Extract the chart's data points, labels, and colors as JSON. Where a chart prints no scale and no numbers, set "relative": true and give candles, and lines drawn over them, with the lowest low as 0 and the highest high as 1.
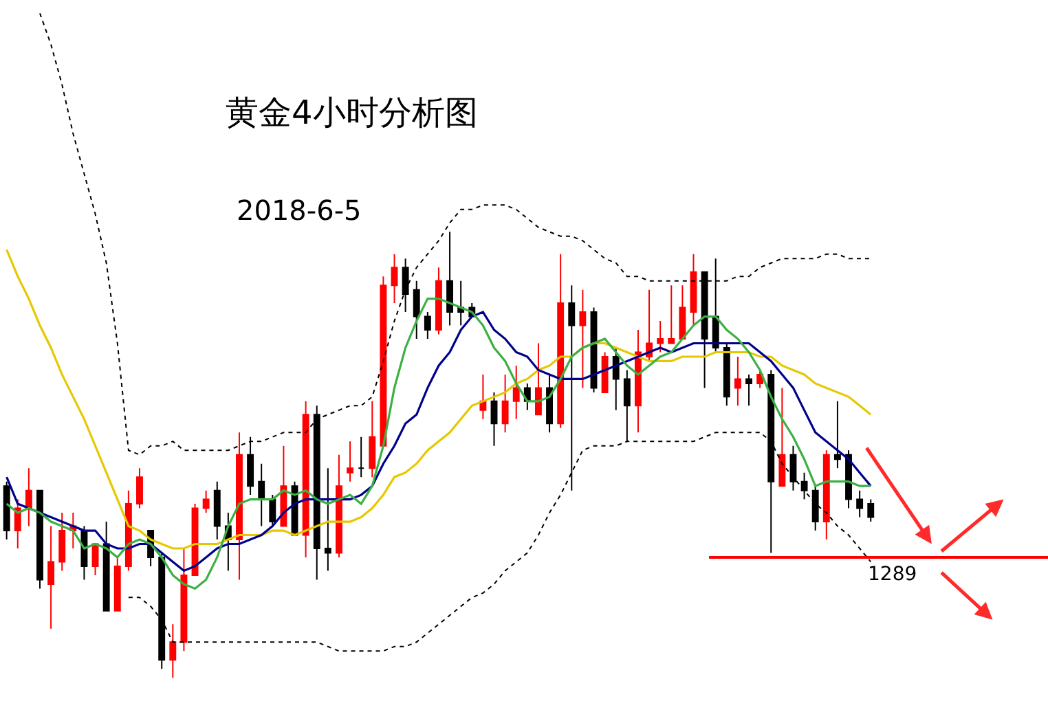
{
  "chart_data": {
    "type": "candlestick",
    "title": "黄金4小时分析图",
    "subtitle": "2018-6-5",
    "relative": true,
    "categories": [
      null,
      null,
      null,
      null,
      null,
      null,
      null,
      null,
      null,
      null,
      null,
      null,
      null,
      null,
      null,
      null,
      null,
      null,
      null,
      null,
      null,
      null,
      null,
      null,
      null,
      null,
      null,
      null,
      null,
      null,
      null,
      null,
      null,
      null,
      null,
      null,
      null,
      null,
      null,
      null,
      null,
      null,
      null,
      null,
      null,
      null,
      null,
      null,
      null,
      null,
      null,
      null,
      null,
      null,
      null,
      null,
      null,
      null,
      null,
      null,
      null,
      null,
      null,
      null,
      null,
      null,
      null,
      null,
      null,
      null,
      null,
      null,
      null,
      null,
      null,
      null,
      null,
      null,
      null
    ],
    "series": [
      {
        "type": "line",
        "color": "#e6c800",
        "line_style": "solid",
        "values": [
          0.96,
          0.9,
          0.85,
          0.79,
          0.74,
          0.68,
          0.63,
          0.58,
          0.52,
          0.46,
          0.4,
          0.34,
          0.33,
          0.31,
          0.3,
          0.29,
          0.29,
          0.3,
          0.3,
          0.3,
          0.31,
          0.32,
          0.32,
          0.32,
          0.33,
          0.33,
          0.32,
          0.33,
          0.34,
          0.35,
          0.35,
          0.35,
          0.36,
          0.38,
          0.41,
          0.45,
          0.46,
          0.48,
          0.51,
          0.53,
          0.55,
          0.58,
          0.61,
          0.62,
          0.63,
          0.64,
          0.66,
          0.67,
          0.69,
          0.7,
          0.72,
          0.72,
          0.74,
          0.75,
          0.75,
          0.74,
          0.73,
          0.72,
          0.71,
          0.71,
          0.71,
          0.72,
          0.72,
          0.72,
          0.73,
          0.73,
          0.73,
          0.73,
          0.72,
          0.72,
          0.7,
          0.69,
          0.68,
          0.66,
          0.65,
          0.64,
          0.63,
          0.61,
          0.59
        ]
      },
      {
        "type": "line",
        "color": "#00008b",
        "line_style": "solid",
        "values": [
          0.45,
          0.39,
          0.38,
          0.37,
          0.36,
          0.35,
          0.34,
          0.33,
          0.33,
          0.3,
          0.29,
          0.29,
          0.3,
          0.3,
          0.28,
          0.26,
          0.24,
          0.25,
          0.27,
          0.29,
          0.3,
          0.3,
          0.31,
          0.32,
          0.34,
          0.37,
          0.39,
          0.4,
          0.4,
          0.4,
          0.4,
          0.4,
          0.41,
          0.43,
          0.48,
          0.52,
          0.57,
          0.59,
          0.65,
          0.7,
          0.73,
          0.78,
          0.81,
          0.82,
          0.78,
          0.76,
          0.73,
          0.72,
          0.69,
          0.68,
          0.67,
          0.67,
          0.67,
          0.68,
          0.69,
          0.7,
          0.71,
          0.72,
          0.73,
          0.74,
          0.73,
          0.74,
          0.75,
          0.75,
          0.75,
          0.75,
          0.75,
          0.75,
          0.73,
          0.71,
          0.68,
          0.65,
          0.6,
          0.55,
          0.53,
          0.51,
          0.49,
          0.46,
          0.43
        ]
      },
      {
        "type": "line",
        "color": "#3cb043",
        "line_style": "solid",
        "values": [
          0.39,
          0.37,
          0.38,
          0.37,
          0.35,
          0.34,
          0.33,
          0.29,
          0.3,
          0.29,
          0.27,
          0.3,
          0.31,
          0.3,
          0.27,
          0.23,
          0.21,
          0.2,
          0.22,
          0.27,
          0.34,
          0.39,
          0.4,
          0.4,
          0.4,
          0.42,
          0.41,
          0.42,
          0.4,
          0.39,
          0.4,
          0.41,
          0.39,
          0.43,
          0.52,
          0.65,
          0.74,
          0.8,
          0.85,
          0.85,
          0.84,
          0.83,
          0.82,
          0.79,
          0.74,
          0.71,
          0.66,
          0.62,
          0.62,
          0.63,
          0.67,
          0.72,
          0.74,
          0.75,
          0.76,
          0.73,
          0.7,
          0.68,
          0.7,
          0.72,
          0.73,
          0.76,
          0.79,
          0.81,
          0.81,
          0.78,
          0.76,
          0.73,
          0.69,
          0.63,
          0.58,
          0.54,
          0.49,
          0.43,
          0.44,
          0.44,
          0.44,
          0.43,
          0.43
        ]
      },
      {
        "type": "line",
        "color": "#000000",
        "line_style": "dotted",
        "values": [
          null,
          null,
          null,
          1.49,
          1.42,
          1.33,
          1.22,
          1.13,
          1.04,
          0.93,
          0.75,
          0.51,
          0.5,
          0.52,
          0.52,
          0.53,
          0.51,
          0.51,
          0.51,
          0.51,
          0.51,
          0.52,
          0.53,
          0.53,
          0.54,
          0.55,
          0.55,
          0.55,
          0.58,
          0.59,
          0.6,
          0.61,
          0.61,
          0.63,
          0.71,
          0.8,
          0.87,
          0.92,
          0.95,
          0.98,
          1.02,
          1.05,
          1.05,
          1.06,
          1.06,
          1.06,
          1.05,
          1.03,
          1.01,
          1.0,
          0.99,
          0.99,
          0.98,
          0.96,
          0.94,
          0.93,
          0.9,
          0.9,
          0.89,
          0.89,
          0.89,
          0.89,
          0.89,
          0.89,
          0.89,
          0.89,
          0.9,
          0.9,
          0.92,
          0.93,
          0.94,
          0.94,
          0.94,
          0.94,
          0.95,
          0.95,
          0.94,
          0.94,
          0.94
        ]
      },
      {
        "type": "line",
        "color": "#000000",
        "line_style": "dotted",
        "values": [
          null,
          null,
          null,
          null,
          null,
          null,
          null,
          null,
          null,
          null,
          null,
          0.18,
          0.18,
          0.16,
          0.13,
          0.08,
          0.08,
          0.08,
          0.08,
          0.08,
          0.08,
          0.08,
          0.08,
          0.08,
          0.08,
          0.08,
          0.08,
          0.08,
          0.08,
          0.07,
          0.06,
          0.06,
          0.06,
          0.06,
          0.06,
          0.07,
          0.07,
          0.08,
          0.1,
          0.12,
          0.14,
          0.16,
          0.18,
          0.19,
          0.21,
          0.24,
          0.26,
          0.28,
          0.32,
          0.37,
          0.41,
          0.46,
          0.51,
          0.52,
          0.52,
          0.52,
          0.53,
          0.53,
          0.53,
          0.53,
          0.53,
          0.53,
          0.53,
          0.54,
          0.55,
          0.55,
          0.55,
          0.55,
          0.55,
          0.53,
          0.48,
          0.45,
          0.42,
          0.39,
          0.37,
          0.34,
          0.32,
          0.29,
          0.26
        ]
      },
      {
        "colors": [
          "#000000",
          "#ff0000",
          "#ff0000",
          "#000000",
          "#ff0000",
          "#ff0000",
          "#ff0000",
          "#000000",
          "#ff0000",
          "#000000",
          "#ff0000",
          "#ff0000",
          "#ff0000",
          "#000000",
          "#000000",
          "#ff0000",
          "#ff0000",
          "#ff0000",
          "#ff0000",
          "#000000",
          "#000000",
          "#ff0000",
          "#000000",
          "#000000",
          "#000000",
          "#ff0000",
          "#000000",
          "#ff0000",
          "#000000",
          "#000000",
          "#ff0000",
          "#ff0000",
          "#000000",
          "#ff0000",
          "#ff0000",
          "#ff0000",
          "#000000",
          "#000000",
          "#000000",
          "#ff0000",
          "#000000",
          "#000000",
          "#000000",
          "#ff0000",
          "#000000",
          "#ff0000",
          "#ff0000",
          "#000000",
          "#ff0000",
          "#000000",
          "#ff0000",
          "#000000",
          "#ff0000",
          "#000000",
          "#ff0000",
          "#000000",
          "#000000",
          "#ff0000",
          "#ff0000",
          "#ff0000",
          "#ff0000",
          "#ff0000",
          "#ff0000",
          "#000000",
          "#000000",
          "#000000",
          "#ff0000",
          "#000000",
          "#ff0000",
          "#000000",
          "#ff0000",
          "#000000",
          "#000000",
          "#000000",
          "#ff0000",
          "#000000",
          "#000000",
          "#000000",
          "#000000"
        ],
        "ohlc": [
          [
            0.43,
            0.44,
            0.31,
            0.33
          ],
          [
            0.33,
            0.4,
            0.29,
            0.38
          ],
          [
            0.38,
            0.47,
            0.34,
            0.42
          ],
          [
            0.42,
            0.42,
            0.2,
            0.22
          ],
          [
            0.21,
            0.34,
            0.11,
            0.26
          ],
          [
            0.26,
            0.37,
            0.24,
            0.33
          ],
          [
            0.33,
            0.37,
            0.29,
            0.34
          ],
          [
            0.33,
            0.34,
            0.22,
            0.25
          ],
          [
            0.25,
            0.3,
            0.23,
            0.3
          ],
          [
            0.3,
            0.35,
            0.15,
            0.15
          ],
          [
            0.15,
            0.27,
            0.15,
            0.25
          ],
          [
            0.25,
            0.42,
            0.24,
            0.39
          ],
          [
            0.39,
            0.47,
            0.38,
            0.45
          ],
          [
            0.33,
            0.33,
            0.25,
            0.27
          ],
          [
            0.27,
            0.28,
            0.02,
            0.04
          ],
          [
            0.04,
            0.12,
            0,
            0.08
          ],
          [
            0.08,
            0.29,
            0.06,
            0.23
          ],
          [
            0.23,
            0.39,
            0.23,
            0.38
          ],
          [
            0.38,
            0.42,
            0.37,
            0.4
          ],
          [
            0.42,
            0.44,
            0.31,
            0.34
          ],
          [
            0.34,
            0.37,
            0.24,
            0.31
          ],
          [
            0.31,
            0.55,
            0.22,
            0.5
          ],
          [
            0.5,
            0.54,
            0.41,
            0.43
          ],
          [
            0.44,
            0.48,
            0.34,
            0.4
          ],
          [
            0.4,
            0.41,
            0.34,
            0.35
          ],
          [
            0.34,
            0.52,
            0.34,
            0.43
          ],
          [
            0.43,
            0.44,
            0.32,
            0.32
          ],
          [
            0.32,
            0.62,
            0.27,
            0.59
          ],
          [
            0.59,
            0.61,
            0.22,
            0.29
          ],
          [
            0.29,
            0.47,
            0.24,
            0.28
          ],
          [
            0.28,
            0.5,
            0.27,
            0.43
          ],
          [
            0.46,
            0.53,
            0.44,
            0.47
          ],
          [
            0.47,
            0.54,
            0.45,
            0.47
          ],
          [
            0.47,
            0.62,
            0.45,
            0.54
          ],
          [
            0.52,
            0.9,
            0.52,
            0.88
          ],
          [
            0.88,
            0.95,
            0.84,
            0.92
          ],
          [
            0.92,
            0.94,
            0.82,
            0.86
          ],
          [
            0.87,
            0.89,
            0.76,
            0.81
          ],
          [
            0.81,
            0.82,
            0.76,
            0.78
          ],
          [
            0.78,
            0.92,
            0.77,
            0.89
          ],
          [
            0.89,
            1,
            0.79,
            0.82
          ],
          [
            0.83,
            0.89,
            0.79,
            0.82
          ],
          [
            0.83,
            0.84,
            0.81,
            0.81
          ],
          [
            0.6,
            0.68,
            0.58,
            0.62
          ],
          [
            0.62,
            0.64,
            0.52,
            0.57
          ],
          [
            0.57,
            0.68,
            0.55,
            0.62
          ],
          [
            0.62,
            0.7,
            0.58,
            0.65
          ],
          [
            0.65,
            0.66,
            0.6,
            0.62
          ],
          [
            0.59,
            0.75,
            0.59,
            0.65
          ],
          [
            0.65,
            0.68,
            0.55,
            0.57
          ],
          [
            0.57,
            0.95,
            0.56,
            0.84
          ],
          [
            0.84,
            0.88,
            0.42,
            0.79
          ],
          [
            0.79,
            0.87,
            0.65,
            0.82
          ],
          [
            0.82,
            0.83,
            0.64,
            0.65
          ],
          [
            0.64,
            0.73,
            0.64,
            0.72
          ],
          [
            0.72,
            0.74,
            0.6,
            0.67
          ],
          [
            0.67,
            0.69,
            0.53,
            0.61
          ],
          [
            0.61,
            0.78,
            0.55,
            0.73
          ],
          [
            0.72,
            0.87,
            0.71,
            0.75
          ],
          [
            0.75,
            0.8,
            0.73,
            0.76
          ],
          [
            0.75,
            0.88,
            0.75,
            0.76
          ],
          [
            0.76,
            0.88,
            0.76,
            0.83
          ],
          [
            0.82,
            0.95,
            0.79,
            0.91
          ],
          [
            0.91,
            0.91,
            0.65,
            0.76
          ],
          [
            0.81,
            0.94,
            0.73,
            0.74
          ],
          [
            0.74,
            0.75,
            0.61,
            0.63
          ],
          [
            0.65,
            0.72,
            0.61,
            0.67
          ],
          [
            0.67,
            0.68,
            0.61,
            0.66
          ],
          [
            0.66,
            0.69,
            0.65,
            0.68
          ],
          [
            0.68,
            0.69,
            0.28,
            0.44
          ],
          [
            0.43,
            0.65,
            0.43,
            0.5
          ],
          [
            0.5,
            0.52,
            0.42,
            0.44
          ],
          [
            0.44,
            0.46,
            0.4,
            0.42
          ],
          [
            0.42,
            0.43,
            0.33,
            0.35
          ],
          [
            0.35,
            0.51,
            0.31,
            0.5
          ],
          [
            0.5,
            0.62,
            0.47,
            0.49
          ],
          [
            0.5,
            0.51,
            0.38,
            0.4
          ],
          [
            0.4,
            0.42,
            0.36,
            0.38
          ],
          [
            0.39,
            0.4,
            0.35,
            0.36
          ]
        ]
      }
    ],
    "ref_lines": [
      {
        "axis": "y",
        "value": 0.27,
        "color": "#ff0000"
      }
    ],
    "annotations": [
      "1289"
    ]
  }
}
